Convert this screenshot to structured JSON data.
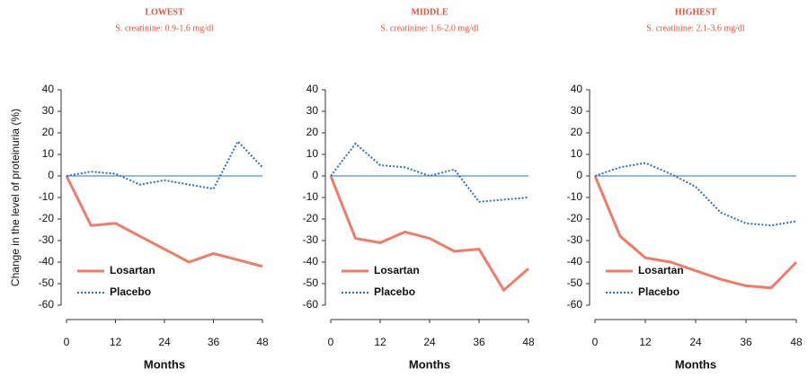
{
  "chart_data": [
    {
      "type": "line",
      "title": "LOWEST",
      "subtitle": "S. creatinine: 0.9-1.6 mg/dl",
      "ylabel": "Change in the level of proteinuria (%)",
      "xlabel": "Months",
      "x": [
        0,
        6,
        12,
        18,
        24,
        30,
        36,
        42,
        48
      ],
      "series": [
        {
          "name": "Losartan",
          "color": "#f07c68",
          "linestyle": "solid",
          "values": [
            0,
            -23,
            -22,
            -28,
            -34,
            -40,
            -36,
            -39,
            -42
          ]
        },
        {
          "name": "Placebo",
          "color": "#2a6fd0",
          "linestyle": "dotted",
          "values": [
            0,
            2,
            1,
            -4,
            -2,
            -4,
            -6,
            16,
            4
          ]
        }
      ],
      "xlim": [
        0,
        48
      ],
      "xticks": [
        0,
        12,
        24,
        36,
        48
      ],
      "ylim": [
        -60,
        40
      ],
      "yticks": [
        -60,
        -50,
        -40,
        -30,
        -20,
        -10,
        0,
        10,
        20,
        30,
        40
      ],
      "legend": "lower left"
    },
    {
      "type": "line",
      "title": "MIDDLE",
      "subtitle": "S. creatinine: 1.6-2.0 mg/dl",
      "xlabel": "Months",
      "x": [
        0,
        6,
        12,
        18,
        24,
        30,
        36,
        42,
        48
      ],
      "series": [
        {
          "name": "Losartan",
          "color": "#f07c68",
          "linestyle": "solid",
          "values": [
            0,
            -29,
            -31,
            -26,
            -29,
            -35,
            -34,
            -53,
            -43
          ]
        },
        {
          "name": "Placebo",
          "color": "#2a6fd0",
          "linestyle": "dotted",
          "values": [
            0,
            15,
            5,
            4,
            0,
            3,
            -12,
            -11,
            -10
          ]
        }
      ],
      "xlim": [
        0,
        48
      ],
      "xticks": [
        0,
        12,
        24,
        36,
        48
      ],
      "ylim": [
        -60,
        40
      ],
      "yticks": [
        -60,
        -50,
        -40,
        -30,
        -20,
        -10,
        0,
        10,
        20,
        30,
        40
      ],
      "legend": "lower left"
    },
    {
      "type": "line",
      "title": "HIGHEST",
      "subtitle": "S. creatinine: 2.1-3.6 mg/dl",
      "xlabel": "Months",
      "x": [
        0,
        6,
        12,
        18,
        24,
        30,
        36,
        42,
        48
      ],
      "series": [
        {
          "name": "Losartan",
          "color": "#f07c68",
          "linestyle": "solid",
          "values": [
            0,
            -28,
            -38,
            -40,
            -44,
            -48,
            -51,
            -52,
            -40
          ]
        },
        {
          "name": "Placebo",
          "color": "#2a6fd0",
          "linestyle": "dotted",
          "values": [
            0,
            4,
            6,
            1,
            -5,
            -17,
            -22,
            -23,
            -21
          ]
        }
      ],
      "xlim": [
        0,
        48
      ],
      "xticks": [
        0,
        12,
        24,
        36,
        48
      ],
      "ylim": [
        -60,
        40
      ],
      "yticks": [
        -60,
        -50,
        -40,
        -30,
        -20,
        -10,
        0,
        10,
        20,
        30,
        40
      ],
      "legend": "lower left"
    }
  ]
}
